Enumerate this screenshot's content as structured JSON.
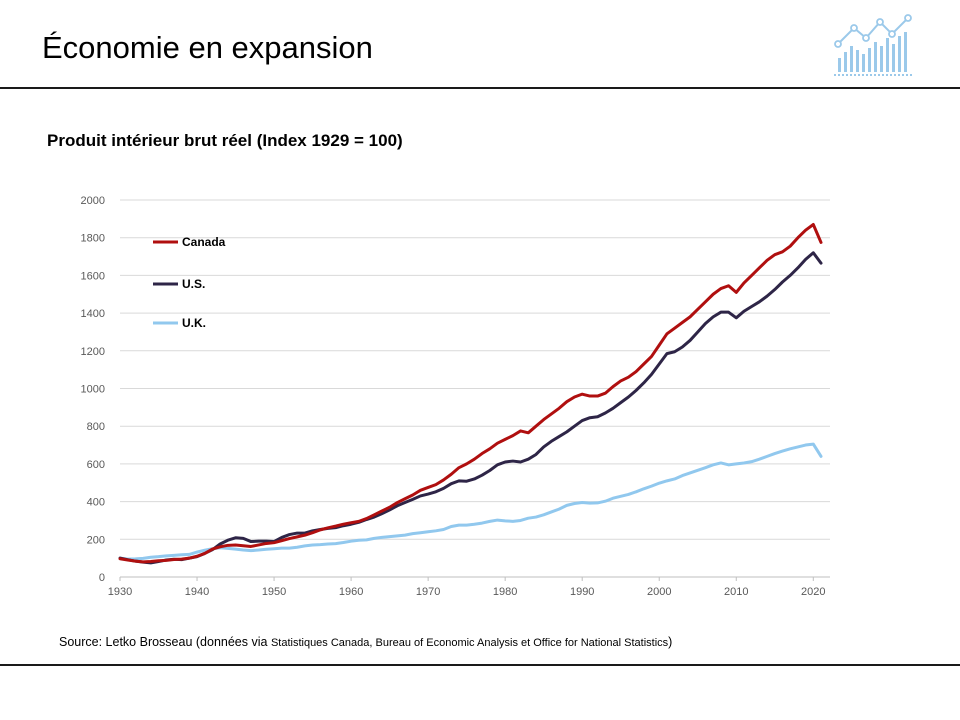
{
  "header": {
    "title": "Économie en expansion"
  },
  "colors": {
    "canada": "#b00f0f",
    "us": "#2e2547",
    "uk": "#91c8ee",
    "grid": "#d9d9d9",
    "logo": "#9bc9ea"
  },
  "source": {
    "prefix": "Source: Letko Brosseau (données via ",
    "detail": "Statistiques Canada, Bureau of Economic Analysis et Office for National Statistics",
    "suffix": ")"
  },
  "chart_data": {
    "type": "line",
    "title": "Produit intérieur brut réel (Index 1929 = 100)",
    "xlabel": "",
    "ylabel": "",
    "xlim": [
      1930,
      2021
    ],
    "ylim": [
      0,
      2000
    ],
    "x_ticks": [
      1930,
      1940,
      1950,
      1960,
      1970,
      1980,
      1990,
      2000,
      2010,
      2020
    ],
    "y_ticks": [
      0,
      200,
      400,
      600,
      800,
      1000,
      1200,
      1400,
      1600,
      1800,
      2000
    ],
    "legend_position": "top-left",
    "grid": "horizontal",
    "series": [
      {
        "name": "Canada",
        "color_key": "canada",
        "points": [
          [
            1930,
            97
          ],
          [
            1931,
            90
          ],
          [
            1932,
            84
          ],
          [
            1933,
            80
          ],
          [
            1934,
            82
          ],
          [
            1935,
            86
          ],
          [
            1936,
            88
          ],
          [
            1937,
            93
          ],
          [
            1938,
            95
          ],
          [
            1939,
            100
          ],
          [
            1940,
            110
          ],
          [
            1941,
            125
          ],
          [
            1942,
            148
          ],
          [
            1943,
            160
          ],
          [
            1944,
            168
          ],
          [
            1945,
            170
          ],
          [
            1946,
            166
          ],
          [
            1947,
            162
          ],
          [
            1948,
            170
          ],
          [
            1949,
            178
          ],
          [
            1950,
            182
          ],
          [
            1951,
            193
          ],
          [
            1952,
            204
          ],
          [
            1953,
            213
          ],
          [
            1954,
            222
          ],
          [
            1955,
            235
          ],
          [
            1956,
            250
          ],
          [
            1957,
            261
          ],
          [
            1958,
            270
          ],
          [
            1959,
            280
          ],
          [
            1960,
            288
          ],
          [
            1961,
            295
          ],
          [
            1962,
            310
          ],
          [
            1963,
            330
          ],
          [
            1964,
            350
          ],
          [
            1965,
            370
          ],
          [
            1966,
            395
          ],
          [
            1967,
            415
          ],
          [
            1968,
            435
          ],
          [
            1969,
            460
          ],
          [
            1970,
            475
          ],
          [
            1971,
            490
          ],
          [
            1972,
            515
          ],
          [
            1973,
            545
          ],
          [
            1974,
            580
          ],
          [
            1975,
            600
          ],
          [
            1976,
            625
          ],
          [
            1977,
            655
          ],
          [
            1978,
            680
          ],
          [
            1979,
            710
          ],
          [
            1980,
            730
          ],
          [
            1981,
            750
          ],
          [
            1982,
            775
          ],
          [
            1983,
            765
          ],
          [
            1984,
            800
          ],
          [
            1985,
            835
          ],
          [
            1986,
            865
          ],
          [
            1987,
            895
          ],
          [
            1988,
            930
          ],
          [
            1989,
            955
          ],
          [
            1990,
            970
          ],
          [
            1991,
            960
          ],
          [
            1992,
            960
          ],
          [
            1993,
            975
          ],
          [
            1994,
            1010
          ],
          [
            1995,
            1040
          ],
          [
            1996,
            1060
          ],
          [
            1997,
            1090
          ],
          [
            1998,
            1130
          ],
          [
            1999,
            1170
          ],
          [
            2000,
            1230
          ],
          [
            2001,
            1290
          ],
          [
            2002,
            1320
          ],
          [
            2003,
            1350
          ],
          [
            2004,
            1380
          ],
          [
            2005,
            1420
          ],
          [
            2006,
            1460
          ],
          [
            2007,
            1500
          ],
          [
            2008,
            1530
          ],
          [
            2009,
            1545
          ],
          [
            2010,
            1510
          ],
          [
            2011,
            1560
          ],
          [
            2012,
            1600
          ],
          [
            2013,
            1640
          ],
          [
            2014,
            1680
          ],
          [
            2015,
            1710
          ],
          [
            2016,
            1725
          ],
          [
            2017,
            1755
          ],
          [
            2018,
            1800
          ],
          [
            2019,
            1840
          ],
          [
            2020,
            1870
          ],
          [
            2021,
            1775
          ]
        ]
      },
      {
        "name": "U.S.",
        "color_key": "us",
        "points": [
          [
            1930,
            100
          ],
          [
            1931,
            92
          ],
          [
            1932,
            84
          ],
          [
            1933,
            79
          ],
          [
            1934,
            75
          ],
          [
            1935,
            82
          ],
          [
            1936,
            90
          ],
          [
            1937,
            94
          ],
          [
            1938,
            92
          ],
          [
            1939,
            100
          ],
          [
            1940,
            108
          ],
          [
            1941,
            125
          ],
          [
            1942,
            145
          ],
          [
            1943,
            175
          ],
          [
            1944,
            195
          ],
          [
            1945,
            208
          ],
          [
            1946,
            205
          ],
          [
            1947,
            188
          ],
          [
            1948,
            190
          ],
          [
            1949,
            190
          ],
          [
            1950,
            188
          ],
          [
            1951,
            210
          ],
          [
            1952,
            225
          ],
          [
            1953,
            233
          ],
          [
            1954,
            233
          ],
          [
            1955,
            245
          ],
          [
            1956,
            252
          ],
          [
            1957,
            258
          ],
          [
            1958,
            262
          ],
          [
            1959,
            272
          ],
          [
            1960,
            280
          ],
          [
            1961,
            290
          ],
          [
            1962,
            305
          ],
          [
            1963,
            318
          ],
          [
            1964,
            336
          ],
          [
            1965,
            356
          ],
          [
            1966,
            378
          ],
          [
            1967,
            395
          ],
          [
            1968,
            412
          ],
          [
            1969,
            430
          ],
          [
            1970,
            440
          ],
          [
            1971,
            452
          ],
          [
            1972,
            470
          ],
          [
            1973,
            495
          ],
          [
            1974,
            510
          ],
          [
            1975,
            508
          ],
          [
            1976,
            520
          ],
          [
            1977,
            540
          ],
          [
            1978,
            565
          ],
          [
            1979,
            595
          ],
          [
            1980,
            610
          ],
          [
            1981,
            615
          ],
          [
            1982,
            610
          ],
          [
            1983,
            625
          ],
          [
            1984,
            650
          ],
          [
            1985,
            690
          ],
          [
            1986,
            720
          ],
          [
            1987,
            745
          ],
          [
            1988,
            770
          ],
          [
            1989,
            800
          ],
          [
            1990,
            830
          ],
          [
            1991,
            845
          ],
          [
            1992,
            850
          ],
          [
            1993,
            870
          ],
          [
            1994,
            895
          ],
          [
            1995,
            925
          ],
          [
            1996,
            955
          ],
          [
            1997,
            990
          ],
          [
            1998,
            1030
          ],
          [
            1999,
            1075
          ],
          [
            2000,
            1130
          ],
          [
            2001,
            1185
          ],
          [
            2002,
            1195
          ],
          [
            2003,
            1220
          ],
          [
            2004,
            1255
          ],
          [
            2005,
            1300
          ],
          [
            2006,
            1345
          ],
          [
            2007,
            1380
          ],
          [
            2008,
            1405
          ],
          [
            2009,
            1405
          ],
          [
            2010,
            1375
          ],
          [
            2011,
            1410
          ],
          [
            2012,
            1435
          ],
          [
            2013,
            1460
          ],
          [
            2014,
            1490
          ],
          [
            2015,
            1525
          ],
          [
            2016,
            1565
          ],
          [
            2017,
            1600
          ],
          [
            2018,
            1640
          ],
          [
            2019,
            1685
          ],
          [
            2020,
            1720
          ],
          [
            2021,
            1665
          ]
        ]
      },
      {
        "name": "U.K.",
        "color_key": "uk",
        "points": [
          [
            1930,
            100
          ],
          [
            1931,
            95
          ],
          [
            1932,
            96
          ],
          [
            1933,
            99
          ],
          [
            1934,
            105
          ],
          [
            1935,
            108
          ],
          [
            1936,
            112
          ],
          [
            1937,
            115
          ],
          [
            1938,
            118
          ],
          [
            1939,
            120
          ],
          [
            1940,
            132
          ],
          [
            1941,
            142
          ],
          [
            1942,
            150
          ],
          [
            1943,
            155
          ],
          [
            1944,
            152
          ],
          [
            1945,
            148
          ],
          [
            1946,
            143
          ],
          [
            1947,
            140
          ],
          [
            1948,
            143
          ],
          [
            1949,
            147
          ],
          [
            1950,
            150
          ],
          [
            1951,
            153
          ],
          [
            1952,
            153
          ],
          [
            1953,
            158
          ],
          [
            1954,
            165
          ],
          [
            1955,
            170
          ],
          [
            1956,
            172
          ],
          [
            1957,
            175
          ],
          [
            1958,
            177
          ],
          [
            1959,
            183
          ],
          [
            1960,
            190
          ],
          [
            1961,
            195
          ],
          [
            1962,
            197
          ],
          [
            1963,
            205
          ],
          [
            1964,
            210
          ],
          [
            1965,
            214
          ],
          [
            1966,
            218
          ],
          [
            1967,
            222
          ],
          [
            1968,
            230
          ],
          [
            1969,
            235
          ],
          [
            1970,
            240
          ],
          [
            1971,
            245
          ],
          [
            1972,
            252
          ],
          [
            1973,
            268
          ],
          [
            1974,
            275
          ],
          [
            1975,
            275
          ],
          [
            1976,
            280
          ],
          [
            1977,
            286
          ],
          [
            1978,
            295
          ],
          [
            1979,
            302
          ],
          [
            1980,
            298
          ],
          [
            1981,
            295
          ],
          [
            1982,
            300
          ],
          [
            1983,
            312
          ],
          [
            1984,
            318
          ],
          [
            1985,
            330
          ],
          [
            1986,
            345
          ],
          [
            1987,
            360
          ],
          [
            1988,
            380
          ],
          [
            1989,
            390
          ],
          [
            1990,
            395
          ],
          [
            1991,
            392
          ],
          [
            1992,
            393
          ],
          [
            1993,
            402
          ],
          [
            1994,
            418
          ],
          [
            1995,
            428
          ],
          [
            1996,
            438
          ],
          [
            1997,
            452
          ],
          [
            1998,
            468
          ],
          [
            1999,
            482
          ],
          [
            2000,
            498
          ],
          [
            2001,
            510
          ],
          [
            2002,
            520
          ],
          [
            2003,
            538
          ],
          [
            2004,
            552
          ],
          [
            2005,
            566
          ],
          [
            2006,
            580
          ],
          [
            2007,
            595
          ],
          [
            2008,
            605
          ],
          [
            2009,
            595
          ],
          [
            2010,
            600
          ],
          [
            2011,
            605
          ],
          [
            2012,
            612
          ],
          [
            2013,
            625
          ],
          [
            2014,
            640
          ],
          [
            2015,
            655
          ],
          [
            2016,
            668
          ],
          [
            2017,
            680
          ],
          [
            2018,
            690
          ],
          [
            2019,
            700
          ],
          [
            2020,
            705
          ],
          [
            2021,
            640
          ]
        ]
      }
    ]
  }
}
